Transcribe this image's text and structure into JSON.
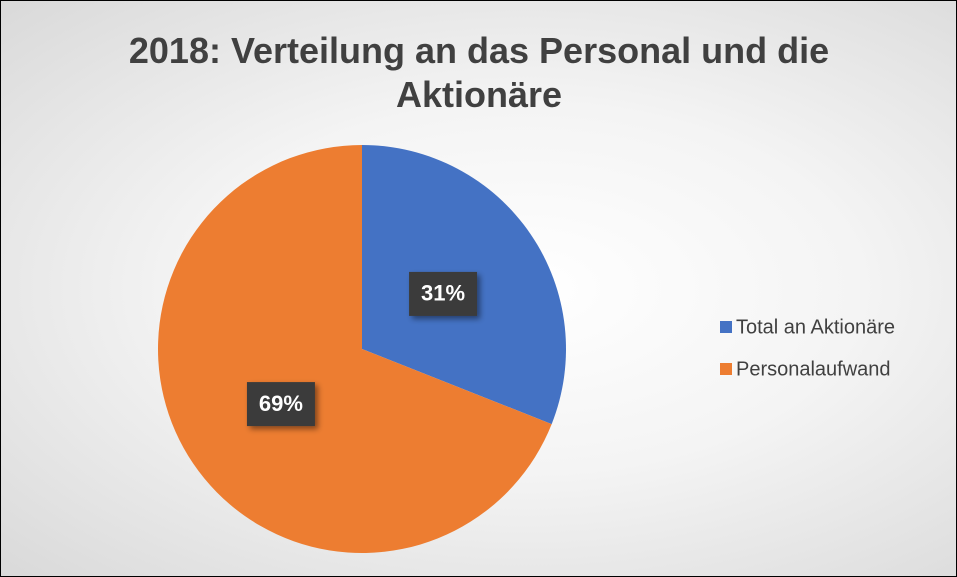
{
  "chart_data": {
    "type": "pie",
    "title": "2018: Verteilung an das Personal und die Aktionäre",
    "categories": [
      "Total an Aktionäre",
      "Personalaufwand"
    ],
    "values": [
      31,
      69
    ],
    "value_labels": [
      "31%",
      "69%"
    ],
    "colors": [
      "#4472c4",
      "#ed7d31"
    ],
    "legend": "right"
  }
}
